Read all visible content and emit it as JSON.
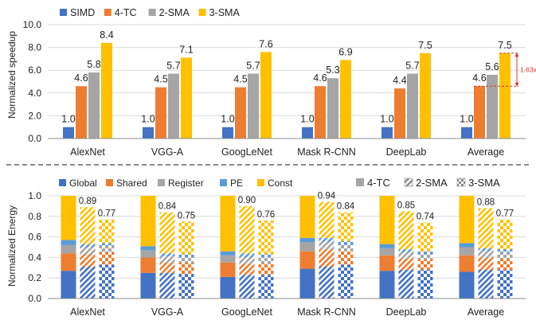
{
  "colors": {
    "simd": "#4472C4",
    "tc4": "#ED7D31",
    "sma2": "#A5A5A5",
    "sma3": "#FFC000",
    "pe": "#5B9BD5",
    "annotation": "#E03030",
    "axis": "#8C8C8C",
    "grid": "#D9D9D9"
  },
  "chart_data": [
    {
      "type": "bar",
      "ylabel": "Normalized speedup",
      "ylim": [
        0,
        10
      ],
      "yticks": [
        "0.0",
        "2.0",
        "4.0",
        "6.0",
        "8.0",
        "10.0"
      ],
      "legend_position": "top-left",
      "categories": [
        "AlexNet",
        "VGG-A",
        "GoogLeNet",
        "Mask R-CNN",
        "DeepLab",
        "Average"
      ],
      "series": [
        {
          "name": "SIMD",
          "values": [
            1.0,
            1.0,
            1.0,
            1.0,
            1.0,
            1.0
          ],
          "labels": [
            "1.0",
            "1.0",
            "1.0",
            "1.0",
            "1.0",
            "1.0"
          ]
        },
        {
          "name": "4-TC",
          "values": [
            4.6,
            4.5,
            4.5,
            4.6,
            4.4,
            4.6
          ],
          "labels": [
            "4.6",
            "4.5",
            "4.5",
            "4.6",
            "4.4",
            "4.6"
          ]
        },
        {
          "name": "2-SMA",
          "values": [
            5.8,
            5.7,
            5.7,
            5.3,
            5.7,
            5.6
          ],
          "labels": [
            "5.8",
            "5.7",
            "5.7",
            "5.3",
            "5.7",
            "5.6"
          ]
        },
        {
          "name": "3-SMA",
          "values": [
            8.4,
            7.1,
            7.6,
            6.9,
            7.5,
            7.5
          ],
          "labels": [
            "8.4",
            "7.1",
            "7.6",
            "6.9",
            "7.5",
            "7.5"
          ]
        }
      ],
      "annotation": {
        "text": "1.63x",
        "category": "Average",
        "from": 4.6,
        "to": 7.5
      }
    },
    {
      "type": "bar",
      "stacked": true,
      "ylabel": "Normalized Energy",
      "ylim": [
        0,
        1.0
      ],
      "yticks": [
        "0.0",
        "0.2",
        "0.4",
        "0.6",
        "0.8",
        "1.0"
      ],
      "categories": [
        "AlexNet",
        "VGG-A",
        "GoogLeNet",
        "Mask R-CNN",
        "DeepLab",
        "Average"
      ],
      "components": [
        "Global",
        "Shared",
        "Register",
        "PE",
        "Const"
      ],
      "configs": [
        "4-TC",
        "2-SMA",
        "3-SMA"
      ],
      "patterns": [
        "solid",
        "diagonal",
        "checker"
      ],
      "groups": [
        {
          "category": "AlexNet",
          "bars": [
            {
              "config": "4-TC",
              "segments": [
                0.27,
                0.17,
                0.08,
                0.05,
                0.43
              ],
              "total": 1.0
            },
            {
              "config": "2-SMA",
              "segments": [
                0.31,
                0.12,
                0.07,
                0.03,
                0.36
              ],
              "total": 0.89,
              "label": "0.89"
            },
            {
              "config": "3-SMA",
              "segments": [
                0.33,
                0.12,
                0.06,
                0.03,
                0.23
              ],
              "total": 0.77,
              "label": "0.77"
            }
          ]
        },
        {
          "category": "VGG-A",
          "bars": [
            {
              "config": "4-TC",
              "segments": [
                0.25,
                0.15,
                0.07,
                0.04,
                0.49
              ],
              "total": 1.0
            },
            {
              "config": "2-SMA",
              "segments": [
                0.25,
                0.1,
                0.06,
                0.03,
                0.4
              ],
              "total": 0.84,
              "label": "0.84"
            },
            {
              "config": "3-SMA",
              "segments": [
                0.24,
                0.11,
                0.05,
                0.03,
                0.32
              ],
              "total": 0.75,
              "label": "0.75"
            }
          ]
        },
        {
          "category": "GoogLeNet",
          "bars": [
            {
              "config": "4-TC",
              "segments": [
                0.21,
                0.14,
                0.07,
                0.04,
                0.54
              ],
              "total": 1.0
            },
            {
              "config": "2-SMA",
              "segments": [
                0.23,
                0.11,
                0.06,
                0.04,
                0.46
              ],
              "total": 0.9,
              "label": "0.90"
            },
            {
              "config": "3-SMA",
              "segments": [
                0.23,
                0.11,
                0.06,
                0.03,
                0.33
              ],
              "total": 0.76,
              "label": "0.76"
            }
          ]
        },
        {
          "category": "Mask R-CNN",
          "bars": [
            {
              "config": "4-TC",
              "segments": [
                0.29,
                0.17,
                0.09,
                0.04,
                0.41
              ],
              "total": 1.0
            },
            {
              "config": "2-SMA",
              "segments": [
                0.31,
                0.17,
                0.07,
                0.04,
                0.35
              ],
              "total": 0.94,
              "label": "0.94"
            },
            {
              "config": "3-SMA",
              "segments": [
                0.33,
                0.13,
                0.06,
                0.04,
                0.28
              ],
              "total": 0.84,
              "label": "0.84"
            }
          ]
        },
        {
          "category": "DeepLab",
          "bars": [
            {
              "config": "4-TC",
              "segments": [
                0.27,
                0.15,
                0.07,
                0.04,
                0.47
              ],
              "total": 1.0
            },
            {
              "config": "2-SMA",
              "segments": [
                0.28,
                0.11,
                0.06,
                0.03,
                0.37
              ],
              "total": 0.85,
              "label": "0.85"
            },
            {
              "config": "3-SMA",
              "segments": [
                0.28,
                0.1,
                0.05,
                0.03,
                0.28
              ],
              "total": 0.74,
              "label": "0.74"
            }
          ]
        },
        {
          "category": "Average",
          "bars": [
            {
              "config": "4-TC",
              "segments": [
                0.26,
                0.16,
                0.08,
                0.04,
                0.46
              ],
              "total": 1.0
            },
            {
              "config": "2-SMA",
              "segments": [
                0.28,
                0.12,
                0.06,
                0.03,
                0.39
              ],
              "total": 0.88,
              "label": "0.88"
            },
            {
              "config": "3-SMA",
              "segments": [
                0.28,
                0.11,
                0.06,
                0.03,
                0.29
              ],
              "total": 0.77,
              "label": "0.77"
            }
          ]
        }
      ]
    }
  ]
}
